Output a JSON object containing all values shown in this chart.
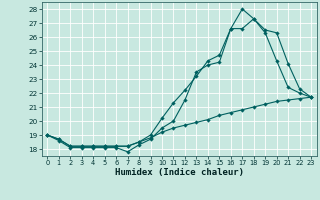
{
  "title": "",
  "xlabel": "Humidex (Indice chaleur)",
  "xlim": [
    -0.5,
    23.5
  ],
  "ylim": [
    17.5,
    28.5
  ],
  "yticks": [
    18,
    19,
    20,
    21,
    22,
    23,
    24,
    25,
    26,
    27,
    28
  ],
  "xticks": [
    0,
    1,
    2,
    3,
    4,
    5,
    6,
    7,
    8,
    9,
    10,
    11,
    12,
    13,
    14,
    15,
    16,
    17,
    18,
    19,
    20,
    21,
    22,
    23
  ],
  "bg_color": "#c8e8e0",
  "line_color": "#006060",
  "grid_color": "#ffffff",
  "line1_x": [
    0,
    1,
    2,
    3,
    4,
    5,
    6,
    7,
    8,
    9,
    10,
    11,
    12,
    13,
    14,
    15,
    16,
    17,
    18,
    19,
    20,
    21,
    22,
    23
  ],
  "line1_y": [
    19.0,
    18.6,
    18.1,
    18.1,
    18.1,
    18.1,
    18.1,
    17.8,
    18.3,
    18.7,
    19.5,
    20.0,
    21.5,
    23.5,
    24.0,
    24.2,
    26.6,
    26.6,
    27.3,
    26.3,
    24.3,
    22.4,
    22.0,
    21.7
  ],
  "line2_x": [
    0,
    1,
    2,
    3,
    4,
    5,
    6,
    7,
    8,
    9,
    10,
    11,
    12,
    13,
    14,
    15,
    16,
    17,
    18,
    19,
    20,
    21,
    22,
    23
  ],
  "line2_y": [
    19.0,
    18.7,
    18.2,
    18.2,
    18.2,
    18.2,
    18.2,
    18.2,
    18.5,
    19.0,
    20.2,
    21.3,
    22.2,
    23.2,
    24.3,
    24.7,
    26.6,
    28.0,
    27.3,
    26.5,
    26.3,
    24.1,
    22.3,
    21.7
  ],
  "line3_x": [
    0,
    1,
    2,
    3,
    4,
    5,
    6,
    7,
    8,
    9,
    10,
    11,
    12,
    13,
    14,
    15,
    16,
    17,
    18,
    19,
    20,
    21,
    22,
    23
  ],
  "line3_y": [
    19.0,
    18.7,
    18.2,
    18.2,
    18.2,
    18.2,
    18.2,
    18.2,
    18.5,
    18.8,
    19.2,
    19.5,
    19.7,
    19.9,
    20.1,
    20.4,
    20.6,
    20.8,
    21.0,
    21.2,
    21.4,
    21.5,
    21.6,
    21.7
  ]
}
